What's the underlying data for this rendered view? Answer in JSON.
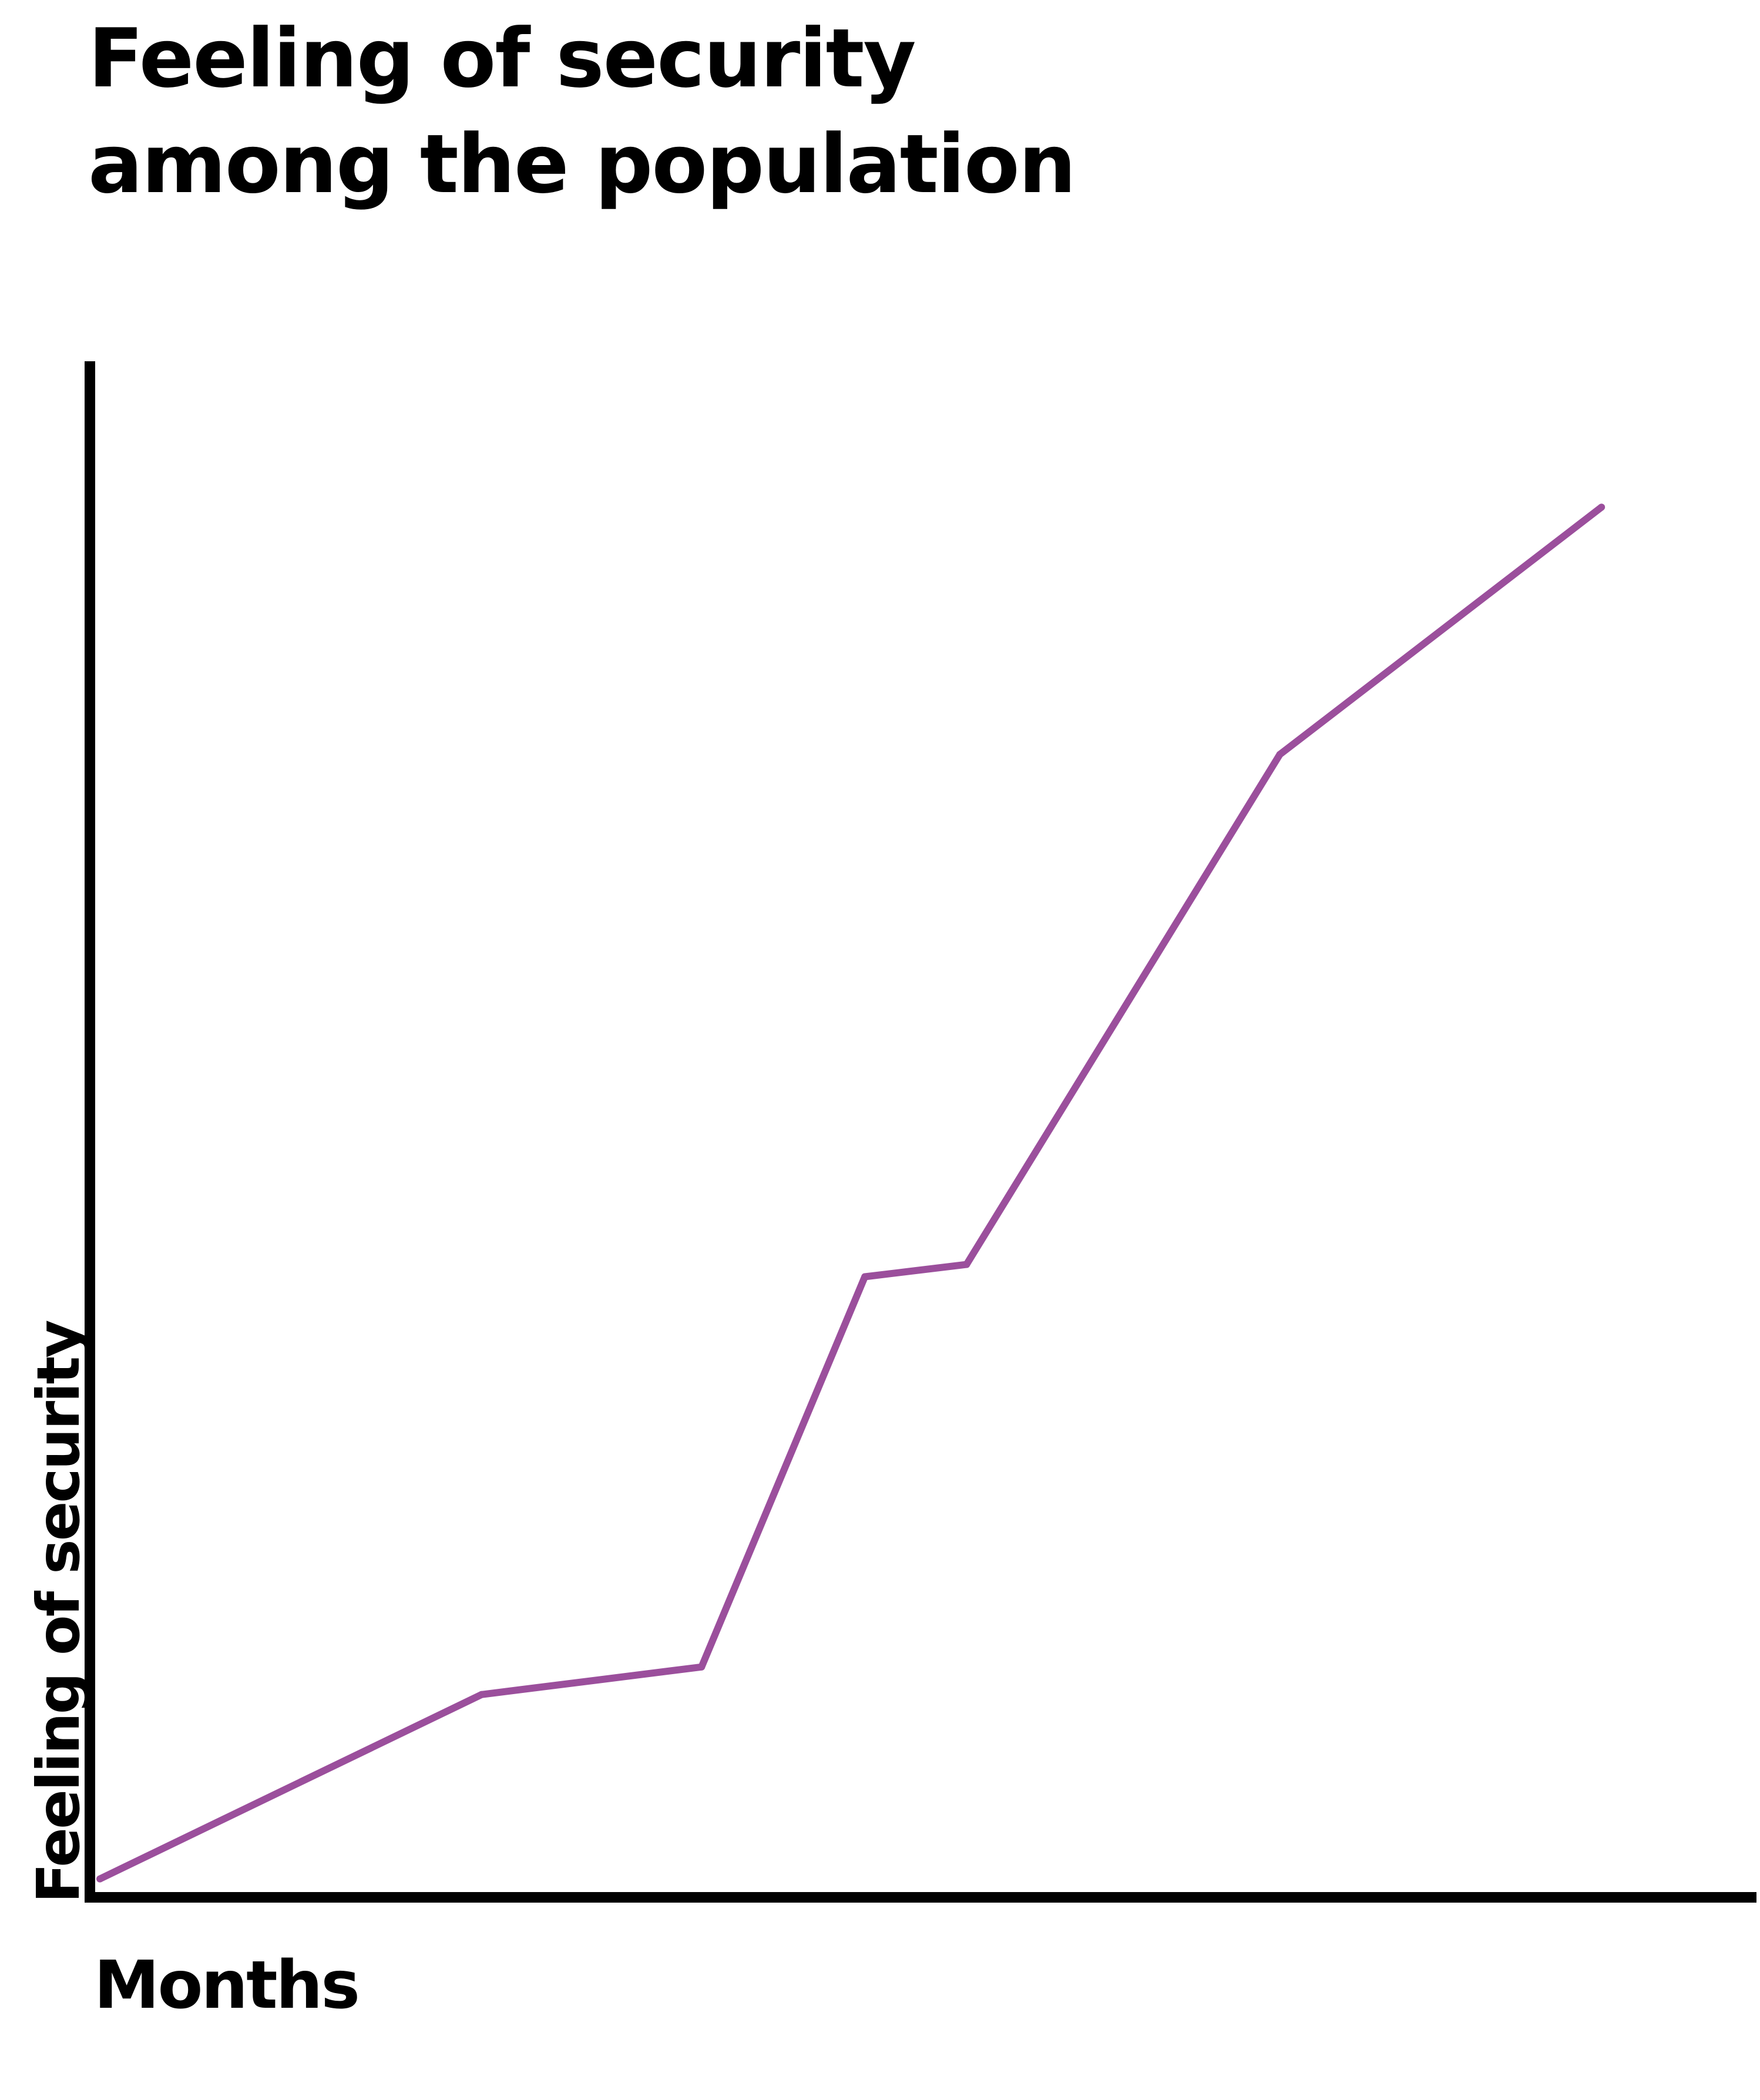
{
  "chart_data": {
    "type": "line",
    "title": "Feeling of security among the population",
    "xlabel": "Months",
    "ylabel": "Feeling of security",
    "xlim": [
      0,
      100
    ],
    "ylim": [
      0,
      100
    ],
    "grid": false,
    "legend": "none",
    "colors": {
      "line": "#9b4f9c",
      "axis": "#000000"
    },
    "series": [
      {
        "x": [
          0.6,
          23.5,
          36.7,
          46.5,
          52.6,
          71.4,
          90.7
        ],
        "y": [
          1.2,
          13.2,
          15.0,
          40.4,
          41.2,
          74.4,
          90.5
        ]
      }
    ]
  }
}
